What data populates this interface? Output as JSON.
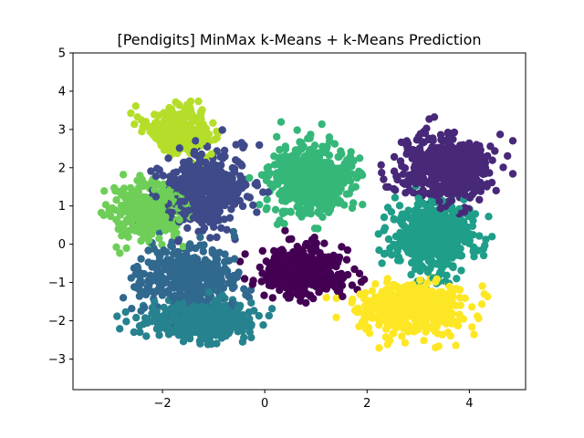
{
  "chart_data": {
    "type": "scatter",
    "title": "[Pendigits] MinMax k-Means + k-Means Prediction",
    "xlabel": "",
    "ylabel": "",
    "xlim": [
      -3.75,
      5.1
    ],
    "ylim": [
      -3.8,
      5.0
    ],
    "xticks": [
      -2,
      0,
      2,
      4
    ],
    "yticks": [
      -3,
      -2,
      -1,
      0,
      1,
      2,
      3,
      4,
      5
    ],
    "grid": false,
    "legend": "none",
    "cluster_colors": [
      "#440154",
      "#482878",
      "#3e4a89",
      "#31688e",
      "#26828e",
      "#1f9e89",
      "#35b779",
      "#6ece58",
      "#b5de2b",
      "#fde725"
    ],
    "clusters": [
      {
        "id": 0,
        "color": "#440154",
        "center": [
          0.8,
          -0.7
        ],
        "spread": [
          0.75,
          0.55
        ],
        "count": 420
      },
      {
        "id": 1,
        "color": "#482878",
        "center": [
          3.5,
          2.0
        ],
        "spread": [
          0.8,
          0.8
        ],
        "count": 520
      },
      {
        "id": 2,
        "color": "#3e4a89",
        "center": [
          -1.2,
          1.4
        ],
        "spread": [
          0.8,
          0.9
        ],
        "count": 420
      },
      {
        "id": 3,
        "color": "#31688e",
        "center": [
          -1.5,
          -0.9
        ],
        "spread": [
          0.9,
          0.8
        ],
        "count": 420
      },
      {
        "id": 4,
        "color": "#26828e",
        "center": [
          -1.3,
          -2.0
        ],
        "spread": [
          0.9,
          0.45
        ],
        "count": 480
      },
      {
        "id": 5,
        "color": "#1f9e89",
        "center": [
          3.3,
          0.2
        ],
        "spread": [
          0.7,
          0.8
        ],
        "count": 520
      },
      {
        "id": 6,
        "color": "#35b779",
        "center": [
          0.9,
          1.7
        ],
        "spread": [
          0.7,
          0.8
        ],
        "count": 520
      },
      {
        "id": 7,
        "color": "#6ece58",
        "center": [
          -2.3,
          0.9
        ],
        "spread": [
          0.55,
          0.7
        ],
        "count": 360
      },
      {
        "id": 8,
        "color": "#b5de2b",
        "center": [
          -1.7,
          3.0
        ],
        "spread": [
          0.6,
          0.55
        ],
        "count": 320
      },
      {
        "id": 9,
        "color": "#fde725",
        "center": [
          2.9,
          -1.7
        ],
        "spread": [
          0.9,
          0.6
        ],
        "count": 480
      }
    ]
  }
}
